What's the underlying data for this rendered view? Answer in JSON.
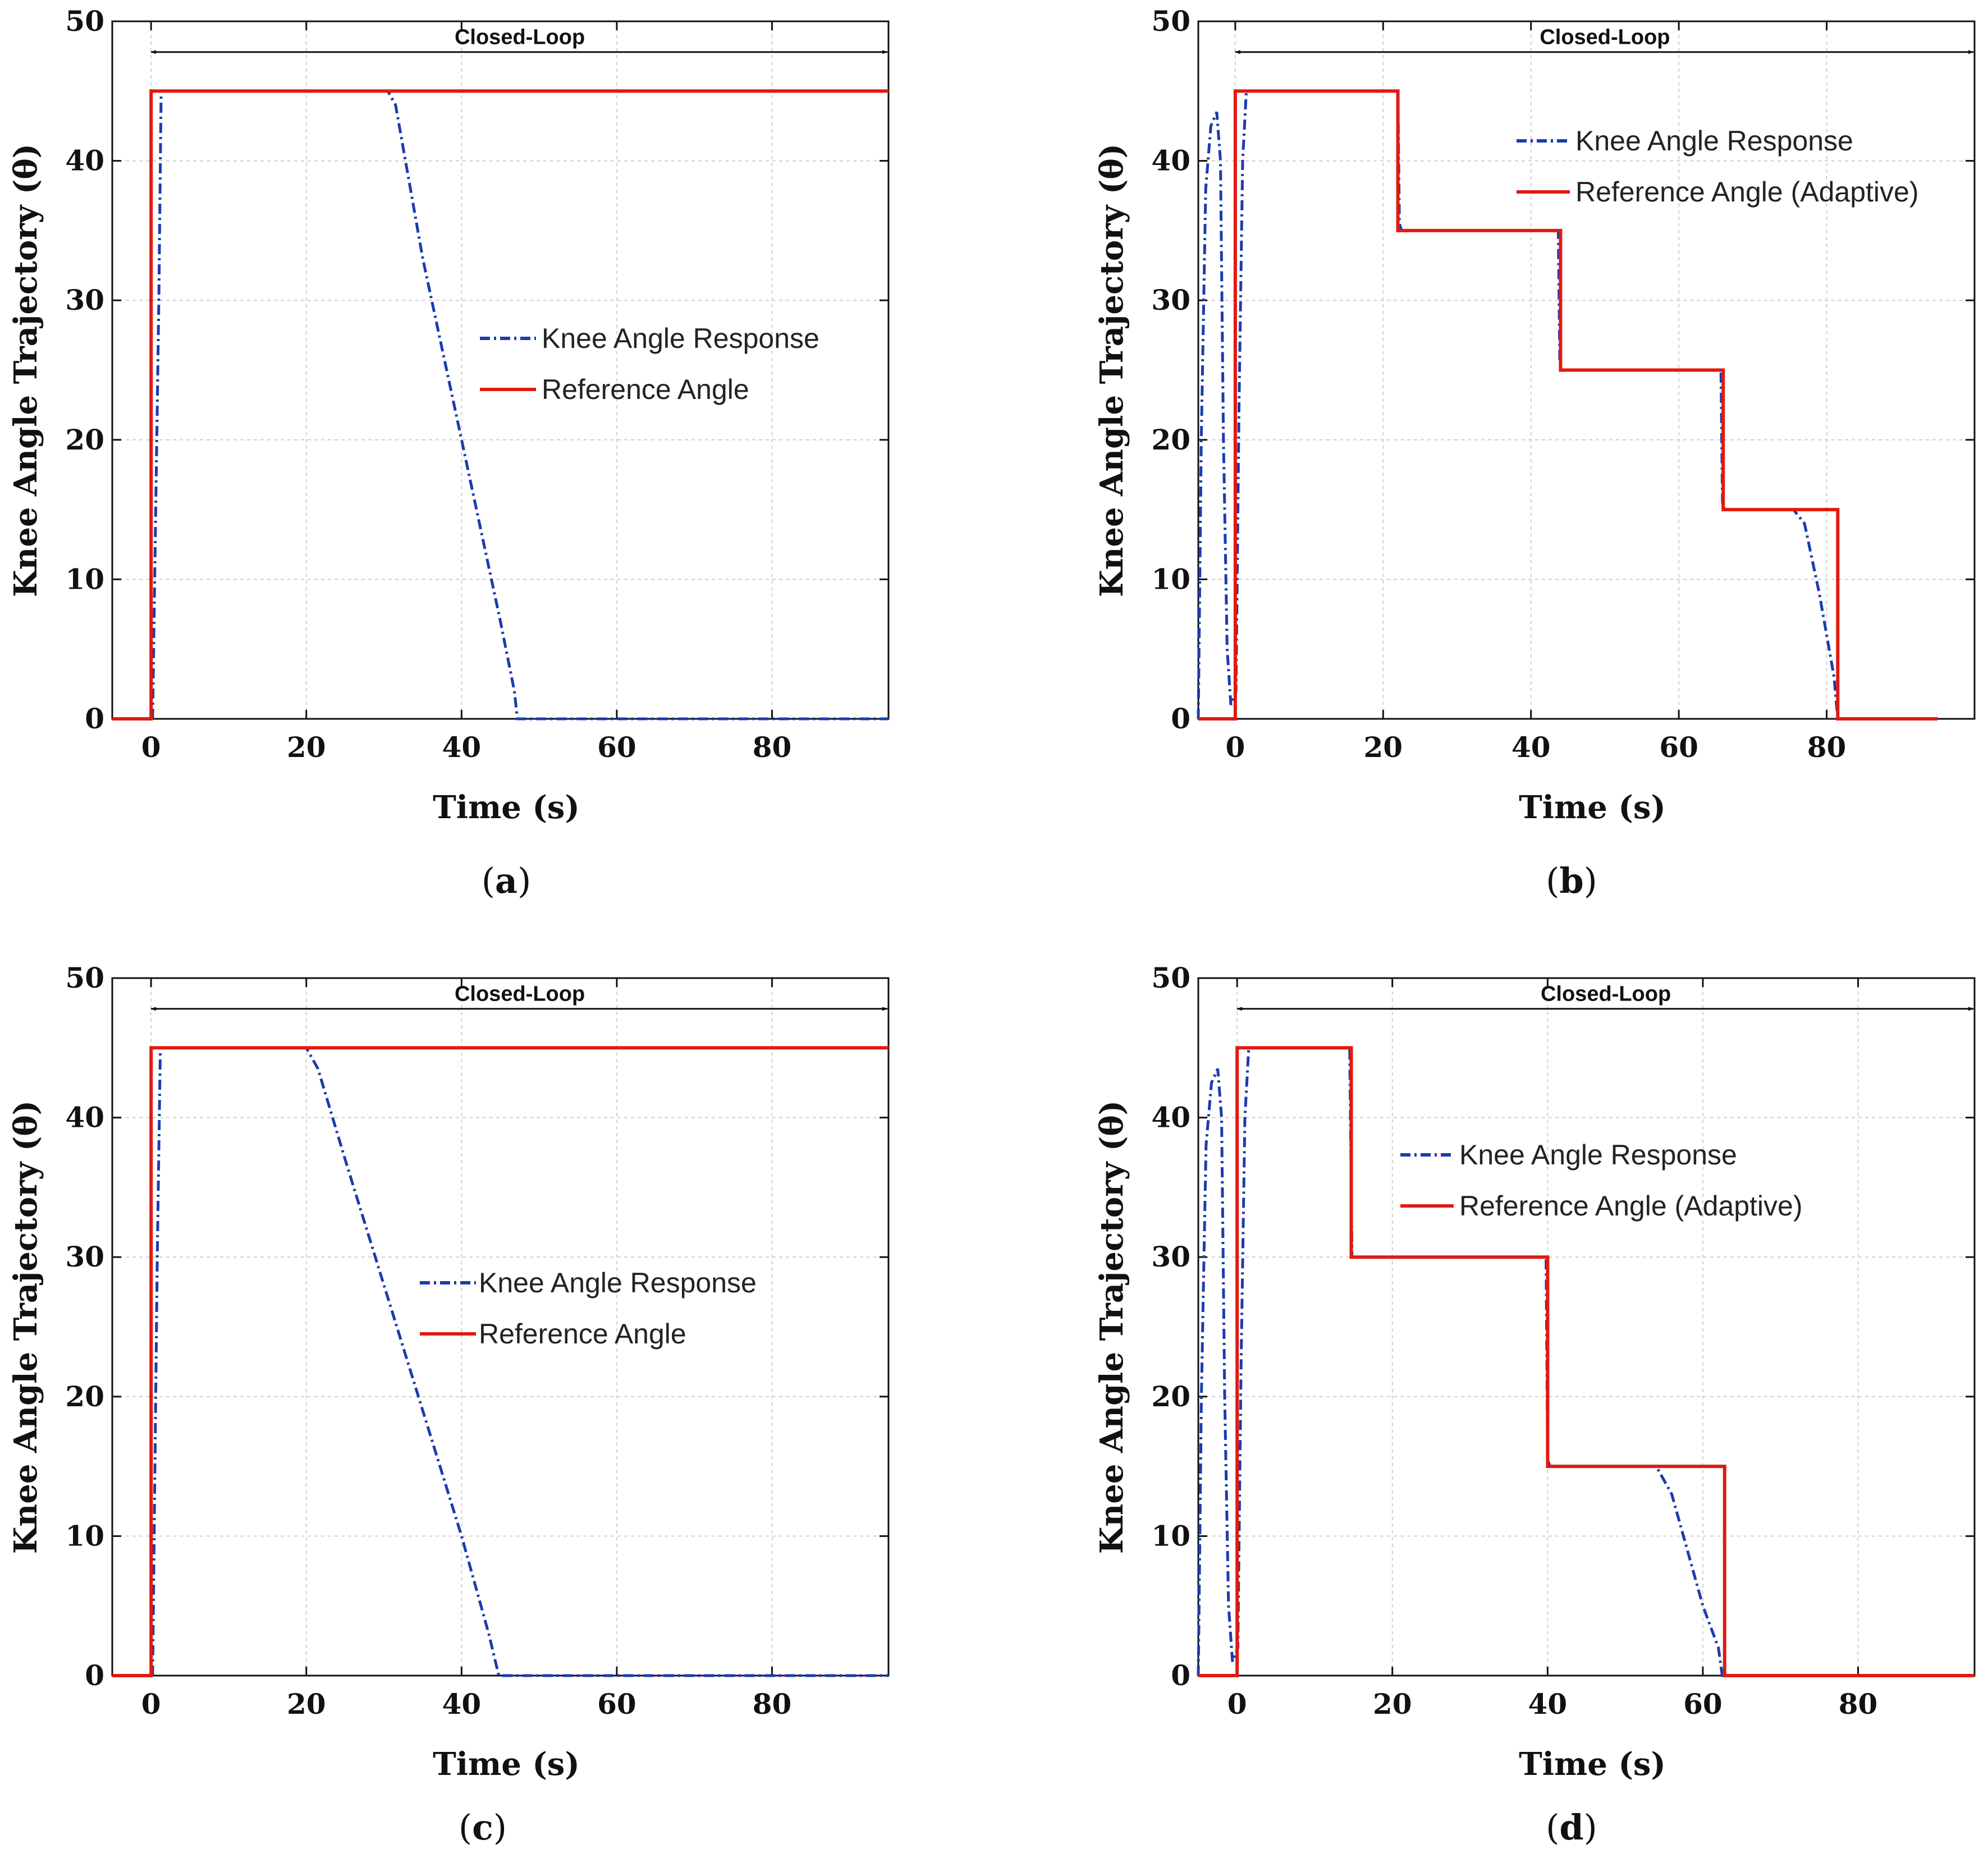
{
  "colors": {
    "response": "#1a3cb0",
    "reference": "#e01a10",
    "grid": "#d0d0d0",
    "axis": "#111111"
  },
  "chart_data": [
    {
      "panel": "a",
      "type": "line",
      "xlabel": "Time (s)",
      "ylabel": "Knee Angle Trajectory (θ)",
      "xlim": [
        -5,
        95
      ],
      "ylim": [
        0,
        50
      ],
      "xticks": [
        0,
        20,
        40,
        60,
        80
      ],
      "yticks": [
        0,
        10,
        20,
        30,
        40,
        50
      ],
      "grid": true,
      "annotation": {
        "text": "Closed-Loop",
        "x_start": 0,
        "x_end": 95,
        "y": 47.8
      },
      "legend": {
        "placement": "center-right",
        "entries": [
          "Knee Angle Response",
          "Reference Angle"
        ]
      },
      "series": [
        {
          "name": "Knee Angle Response",
          "style": "dash-dot",
          "x": [
            -5,
            0.2,
            1,
            1.3,
            30.5,
            31.5,
            35,
            40,
            45,
            46.8,
            47.2,
            95
          ],
          "y": [
            0,
            0,
            30,
            45,
            45,
            44,
            33,
            20,
            7,
            2,
            0,
            0
          ]
        },
        {
          "name": "Reference Angle",
          "style": "solid",
          "x": [
            -5,
            0,
            0,
            95
          ],
          "y": [
            0,
            0,
            45,
            45
          ]
        }
      ]
    },
    {
      "panel": "b",
      "type": "line",
      "xlabel": "Time (s)",
      "ylabel": "Knee Angle Trajectory (θ)",
      "xlim": [
        -5,
        100
      ],
      "ylim": [
        0,
        50
      ],
      "xticks": [
        0,
        20,
        40,
        60,
        80
      ],
      "yticks": [
        0,
        10,
        20,
        30,
        40,
        50
      ],
      "grid": true,
      "annotation": {
        "text": "Closed-Loop",
        "x_start": 0,
        "x_end": 100,
        "y": 47.8
      },
      "legend": {
        "placement": "top-right",
        "entries": [
          "Knee Angle Response",
          "Reference Angle (Adaptive)"
        ]
      },
      "series": [
        {
          "name": "Knee Angle Response",
          "style": "dash-dot",
          "x": [
            -5,
            -4.6,
            -4,
            -3.3,
            -2.5,
            -2,
            -1.6,
            -1.1,
            -0.6,
            0.1,
            0.5,
            1,
            1.5,
            22,
            22.2,
            22.5,
            43.7,
            43.9,
            44.2,
            65.7,
            65.9,
            66.2,
            75.5,
            77,
            79,
            81,
            81.5,
            95
          ],
          "y": [
            0,
            20,
            38,
            42.5,
            43.5,
            40,
            20,
            5,
            1,
            2,
            22,
            40,
            45,
            45,
            35.5,
            35,
            35,
            25.5,
            25,
            25,
            15.5,
            15,
            15,
            14,
            9,
            3,
            0,
            0
          ]
        },
        {
          "name": "Reference Angle (Adaptive)",
          "style": "solid",
          "x": [
            -5,
            0,
            0,
            22,
            22,
            44,
            44,
            66,
            66,
            81.5,
            81.5,
            95
          ],
          "y": [
            0,
            0,
            45,
            45,
            35,
            35,
            25,
            25,
            15,
            15,
            0,
            0
          ]
        }
      ]
    },
    {
      "panel": "c",
      "type": "line",
      "xlabel": "Time (s)",
      "ylabel": "Knee Angle Trajectory (θ)",
      "xlim": [
        -5,
        95
      ],
      "ylim": [
        0,
        50
      ],
      "xticks": [
        0,
        20,
        40,
        60,
        80
      ],
      "yticks": [
        0,
        10,
        20,
        30,
        40,
        50
      ],
      "grid": true,
      "annotation": {
        "text": "Closed-Loop",
        "x_start": 0,
        "x_end": 95,
        "y": 47.8
      },
      "legend": {
        "placement": "center-right",
        "entries": [
          "Knee Angle Response",
          "Reference Angle"
        ]
      },
      "series": [
        {
          "name": "Knee Angle Response",
          "style": "dash-dot",
          "x": [
            -5,
            0.2,
            0.8,
            1.2,
            20,
            21.5,
            25,
            30,
            35,
            40,
            43.5,
            44.8,
            95
          ],
          "y": [
            0,
            0,
            30,
            45,
            45,
            43.5,
            37,
            28,
            19,
            10,
            3,
            0,
            0
          ]
        },
        {
          "name": "Reference Angle",
          "style": "solid",
          "x": [
            -5,
            0,
            0,
            95
          ],
          "y": [
            0,
            0,
            45,
            45
          ]
        }
      ]
    },
    {
      "panel": "d",
      "type": "line",
      "xlabel": "Time (s)",
      "ylabel": "Knee Angle Trajectory (θ)",
      "xlim": [
        -5,
        95
      ],
      "ylim": [
        0,
        50
      ],
      "xticks": [
        0,
        20,
        40,
        60,
        80
      ],
      "yticks": [
        0,
        10,
        20,
        30,
        40,
        50
      ],
      "grid": true,
      "annotation": {
        "text": "Closed-Loop",
        "x_start": 0,
        "x_end": 95,
        "y": 47.8
      },
      "legend": {
        "placement": "top-right",
        "entries": [
          "Knee Angle Response",
          "Reference Angle (Adaptive)"
        ]
      },
      "series": [
        {
          "name": "Knee Angle Response",
          "style": "dash-dot",
          "x": [
            -5,
            -4.6,
            -4,
            -3.3,
            -2.5,
            -2,
            -1.6,
            -1.1,
            -0.6,
            0.1,
            0.5,
            1,
            1.5,
            14.5,
            14.8,
            15.2,
            39.8,
            40,
            40.3,
            54,
            56,
            58,
            60,
            62,
            62.5,
            95
          ],
          "y": [
            0,
            20,
            38,
            42.5,
            43.5,
            40,
            20,
            5,
            1,
            2,
            22,
            40,
            45,
            45,
            30,
            30,
            30,
            15.5,
            15,
            15,
            13,
            9,
            5,
            2,
            0,
            0
          ]
        },
        {
          "name": "Reference Angle (Adaptive)",
          "style": "solid",
          "x": [
            -5,
            0,
            0,
            14.7,
            14.7,
            40,
            40,
            62.8,
            62.8,
            95
          ],
          "y": [
            0,
            0,
            45,
            45,
            30,
            30,
            15,
            15,
            0,
            0
          ]
        }
      ]
    }
  ],
  "panel_labels": [
    {
      "open": "(",
      "letter": "a",
      "close": ")"
    },
    {
      "open": "(",
      "letter": "b",
      "close": ")"
    },
    {
      "open": "(",
      "letter": "c",
      "close": ")"
    },
    {
      "open": "(",
      "letter": "d",
      "close": ")"
    }
  ]
}
